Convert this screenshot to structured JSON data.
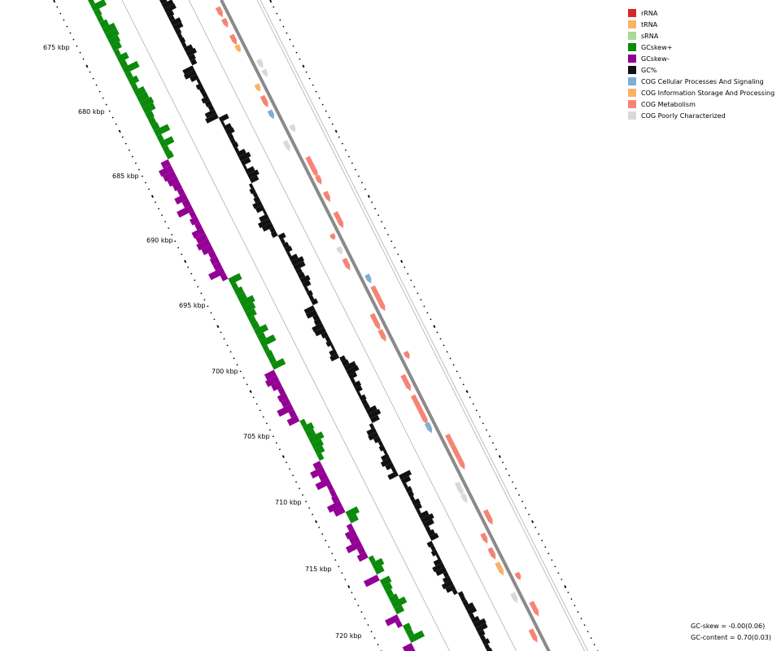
{
  "legend": [
    {
      "label": "rRNA",
      "color": "#d62728"
    },
    {
      "label": "tRNA",
      "color": "#fbb163"
    },
    {
      "label": "sRNA",
      "color": "#a8d89a"
    },
    {
      "label": "GCskew+",
      "color": "#0b8a0b"
    },
    {
      "label": "GCskew-",
      "color": "#930094"
    },
    {
      "label": "GC%",
      "color": "#111111"
    },
    {
      "label": "COG Cellular Processes And Signaling",
      "color": "#7faed6"
    },
    {
      "label": "COG Information Storage And Processing",
      "color": "#fbb163"
    },
    {
      "label": "COG Metabolism",
      "color": "#f58475"
    },
    {
      "label": "COG Poorly Characterized",
      "color": "#d9d9d9"
    }
  ],
  "ticks": [
    {
      "label": "675 kbp"
    },
    {
      "label": "680 kbp"
    },
    {
      "label": "685 kbp"
    },
    {
      "label": "690 kbp"
    },
    {
      "label": "695 kbp"
    },
    {
      "label": "700 kbp"
    },
    {
      "label": "705 kbp"
    },
    {
      "label": "710 kbp"
    },
    {
      "label": "715 kbp"
    },
    {
      "label": "720 kbp"
    }
  ],
  "stats": {
    "gc_skew": "GC-skew = -0.00(0.06)",
    "gc_content": "GC-content = 0.70(0.03)"
  },
  "colors": {
    "gc_plus": "#0b8a0b",
    "gc_minus": "#930094",
    "gc_pct": "#111111",
    "metabolism": "#f58475",
    "info": "#fbb163",
    "cellular": "#7faed6",
    "poor": "#d9d9d9",
    "backbone": "#8a8a8a",
    "guide": "#b0b0b0"
  },
  "gc_skew_profile": [
    1,
    1,
    1,
    1,
    1,
    1,
    1,
    1,
    1,
    1,
    1,
    1,
    1,
    1,
    1,
    1,
    1,
    1,
    1,
    1,
    1,
    1,
    1,
    1,
    1,
    1,
    1,
    1,
    -1,
    -1,
    -1,
    -1,
    -1,
    -1,
    -1,
    -1,
    -1,
    -1,
    -1,
    -1,
    -1,
    -1,
    -1,
    -1,
    -1,
    -1,
    -1,
    -1,
    -1,
    1,
    1,
    1,
    1,
    1,
    1,
    1,
    1,
    1,
    1,
    1,
    1,
    1,
    1,
    1,
    1,
    -1,
    -1,
    -1,
    -1,
    -1,
    -1,
    -1,
    -1,
    -1,
    1,
    1,
    1,
    1,
    1,
    1,
    1,
    -1,
    -1,
    -1,
    -1,
    -1,
    -1,
    -1,
    -1,
    -1,
    1,
    1,
    -1,
    -1,
    -1,
    -1,
    -1,
    -1,
    1,
    1,
    1,
    -1,
    1,
    1,
    1,
    1,
    1,
    1,
    -1,
    -1,
    1,
    1,
    1,
    -1,
    -1
  ],
  "genes": [
    {
      "cat": "metabolism",
      "strand": "+"
    },
    {
      "cat": "metabolism",
      "strand": "+"
    },
    {
      "cat": "metabolism",
      "strand": "+"
    },
    {
      "cat": "info",
      "strand": "+"
    },
    {
      "cat": "poor",
      "strand": "-"
    },
    {
      "cat": "poor",
      "strand": "-"
    },
    {
      "cat": "info",
      "strand": "+"
    },
    {
      "cat": "metabolism",
      "strand": "+"
    },
    {
      "cat": "cellular",
      "strand": "+"
    },
    {
      "cat": "poor",
      "strand": "-"
    },
    {
      "cat": "poor",
      "strand": "+"
    },
    {
      "cat": "metabolism",
      "strand": "-"
    },
    {
      "cat": "metabolism",
      "strand": "-"
    },
    {
      "cat": "metabolism",
      "strand": "-"
    },
    {
      "cat": "metabolism",
      "strand": "-"
    },
    {
      "cat": "metabolism",
      "strand": "+"
    },
    {
      "cat": "poor",
      "strand": "+"
    },
    {
      "cat": "metabolism",
      "strand": "+"
    },
    {
      "cat": "cellular",
      "strand": "-"
    },
    {
      "cat": "metabolism",
      "strand": "-"
    },
    {
      "cat": "metabolism",
      "strand": "+"
    },
    {
      "cat": "metabolism",
      "strand": "+"
    },
    {
      "cat": "metabolism",
      "strand": "-"
    },
    {
      "cat": "metabolism",
      "strand": "+"
    },
    {
      "cat": "metabolism",
      "strand": "+"
    },
    {
      "cat": "cellular",
      "strand": "+"
    },
    {
      "cat": "metabolism",
      "strand": "-"
    },
    {
      "cat": "metabolism",
      "strand": "-"
    },
    {
      "cat": "poor",
      "strand": "+"
    },
    {
      "cat": "poor",
      "strand": "+"
    },
    {
      "cat": "metabolism",
      "strand": "-"
    },
    {
      "cat": "metabolism",
      "strand": "+"
    },
    {
      "cat": "metabolism",
      "strand": "+"
    },
    {
      "cat": "info",
      "strand": "+"
    },
    {
      "cat": "metabolism",
      "strand": "-"
    },
    {
      "cat": "poor",
      "strand": "+"
    },
    {
      "cat": "metabolism",
      "strand": "-"
    },
    {
      "cat": "metabolism",
      "strand": "+"
    }
  ]
}
